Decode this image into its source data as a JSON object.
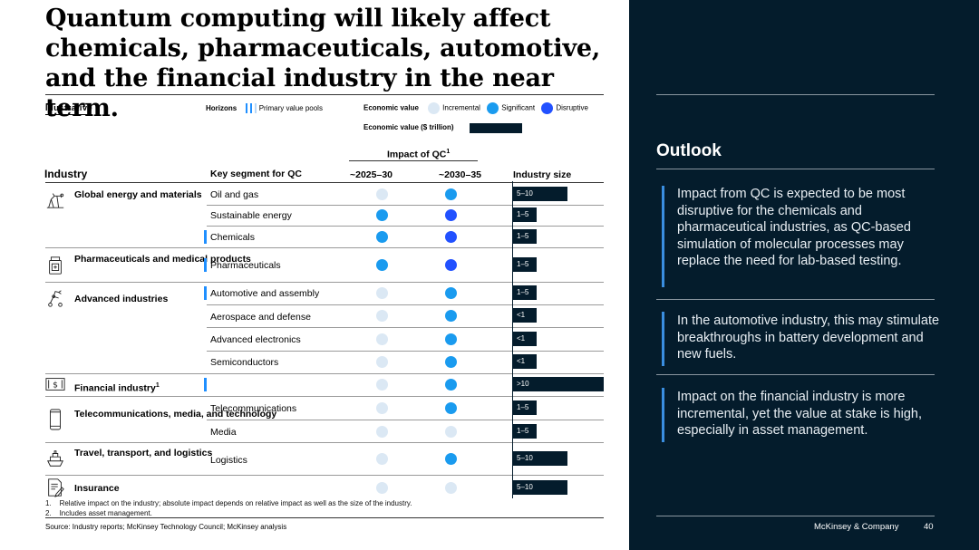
{
  "title": "Quantum computing will likely affect chemicals, pharmaceuticals, automotive, and the financial industry in the near term.",
  "illustrative": "Illustrative",
  "legend": {
    "horizons_label": "Horizons",
    "primary_value_pools": "Primary value pools",
    "economic_value_label": "Economic value",
    "incremental": "Incremental",
    "significant": "Significant",
    "disruptive": "Disruptive",
    "economic_value_trillion": "Economic value ($ trillion)"
  },
  "colors": {
    "incremental": "#dbe8f4",
    "significant": "#1a9bef",
    "disruptive": "#2251ff",
    "navy": "#041c2c",
    "pool_bar": "#1f8fff"
  },
  "table": {
    "impact_header": "Impact of QC",
    "impact_sup": "1",
    "col_industry": "Industry",
    "col_segment": "Key segment for QC",
    "col_2025": "~2025–30",
    "col_2030": "~2030–35",
    "col_size": "Industry size",
    "industries": [
      {
        "name": "Global energy and materials",
        "sup": "",
        "icon": "oil-pump-icon"
      },
      {
        "name": "Pharmaceuticals and medical products",
        "sup": "",
        "icon": "medicine-bottle-icon"
      },
      {
        "name": "Advanced industries",
        "sup": "",
        "icon": "robot-arm-icon"
      },
      {
        "name": "Financial industry",
        "sup": "1",
        "icon": "dollar-bill-icon"
      },
      {
        "name": "Telecommunications, media, and technology",
        "sup": "",
        "icon": "smartphone-icon"
      },
      {
        "name": "Travel, transport, and logistics",
        "sup": "",
        "icon": "ship-icon"
      },
      {
        "name": "Insurance",
        "sup": "",
        "icon": "document-pen-icon"
      }
    ],
    "rows": [
      {
        "segment": "Oil and gas",
        "pool": false,
        "h1": "incremental",
        "h2": "significant",
        "size_label": "5–10",
        "size": 7.5
      },
      {
        "segment": "Sustainable energy",
        "pool": false,
        "h1": "significant",
        "h2": "disruptive",
        "size_label": "1–5",
        "size": 3
      },
      {
        "segment": "Chemicals",
        "pool": true,
        "h1": "significant",
        "h2": "disruptive",
        "size_label": "1–5",
        "size": 3
      },
      {
        "segment": "Pharmaceuticals",
        "pool": true,
        "h1": "significant",
        "h2": "disruptive",
        "size_label": "1–5",
        "size": 3
      },
      {
        "segment": "Automotive and assembly",
        "pool": true,
        "h1": "incremental",
        "h2": "significant",
        "size_label": "1–5",
        "size": 3
      },
      {
        "segment": "Aerospace and defense",
        "pool": false,
        "h1": "incremental",
        "h2": "significant",
        "size_label": "<1",
        "size": 1
      },
      {
        "segment": "Advanced electronics",
        "pool": false,
        "h1": "incremental",
        "h2": "significant",
        "size_label": "<1",
        "size": 1
      },
      {
        "segment": "Semiconductors",
        "pool": false,
        "h1": "incremental",
        "h2": "significant",
        "size_label": "<1",
        "size": 1
      },
      {
        "segment": "",
        "pool": true,
        "h1": "incremental",
        "h2": "significant",
        "size_label": ">10",
        "size": 12.5
      },
      {
        "segment": "Telecommunications",
        "pool": false,
        "h1": "incremental",
        "h2": "significant",
        "size_label": "1–5",
        "size": 3
      },
      {
        "segment": "Media",
        "pool": false,
        "h1": "incremental",
        "h2": "incremental",
        "size_label": "1–5",
        "size": 3
      },
      {
        "segment": "Logistics",
        "pool": false,
        "h1": "incremental",
        "h2": "significant",
        "size_label": "5–10",
        "size": 7.5
      },
      {
        "segment": "",
        "pool": false,
        "h1": "incremental",
        "h2": "incremental",
        "size_label": "5–10",
        "size": 7.5
      }
    ]
  },
  "footnotes": [
    "1.    Relative impact on the industry; absolute impact depends on relative impact as well as the size of the industry.",
    "2.    Includes asset management."
  ],
  "source": "Source: Industry reports; McKinsey Technology Council; McKinsey analysis",
  "outlook": {
    "heading": "Outlook",
    "points": [
      "Impact from QC is expected to be most disruptive for the chemicals and pharmaceutical industries, as QC-based simulation of molecular processes may replace the need for lab-based testing.",
      "In the automotive industry, this may stimulate breakthroughs in battery development and new fuels.",
      "Impact on the financial industry is more incremental, yet the value at stake is high, especially in asset management."
    ]
  },
  "brand": "McKinsey & Company",
  "page_number": "40"
}
